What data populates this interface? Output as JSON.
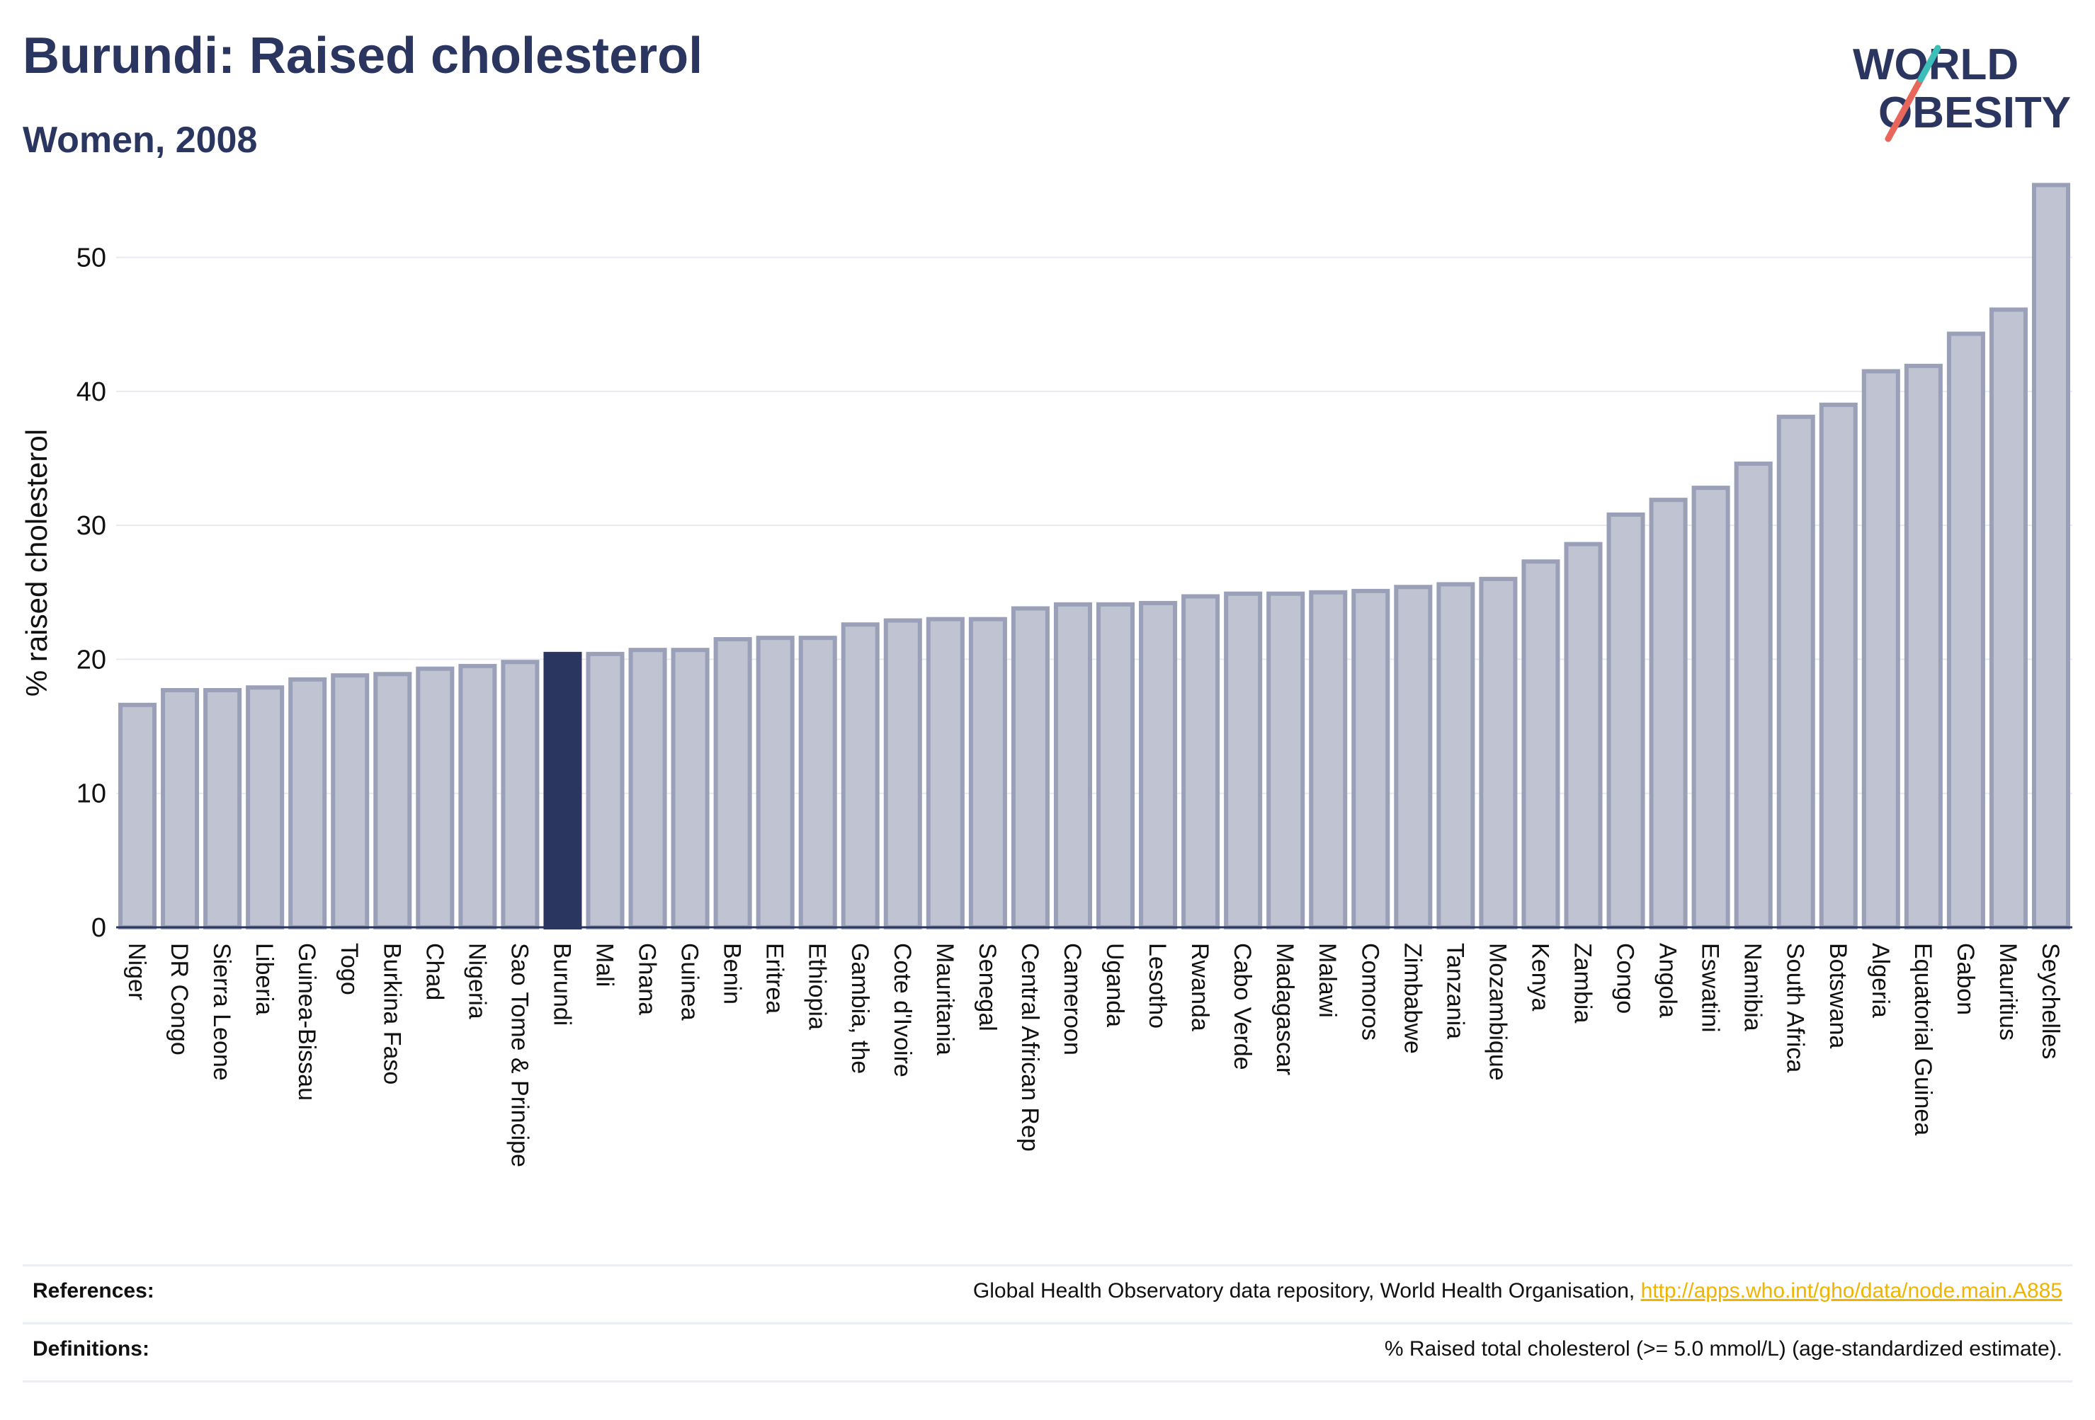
{
  "header": {
    "title": "Burundi: Raised cholesterol",
    "subtitle": "Women, 2008"
  },
  "logo": {
    "line1": "WORLD",
    "line2": "OBESITY"
  },
  "colors": {
    "title": "#2a3560",
    "bar_fill": "#bfc3d2",
    "bar_stroke": "#9aa0b8",
    "highlight": "#2a3560",
    "accent_red": "#e8675a",
    "accent_teal": "#3bbfb8",
    "link": "#f0b400"
  },
  "chart_data": {
    "type": "bar",
    "ylabel": "% raised cholesterol",
    "xlabel": "",
    "ylim": [
      0,
      56
    ],
    "yticks": [
      0,
      10,
      20,
      30,
      40,
      50
    ],
    "grid": true,
    "highlight": "Burundi",
    "categories": [
      "Niger",
      "DR Congo",
      "Sierra Leone",
      "Liberia",
      "Guinea-Bissau",
      "Togo",
      "Burkina Faso",
      "Chad",
      "Nigeria",
      "Sao Tome & Principe",
      "Burundi",
      "Mali",
      "Ghana",
      "Guinea",
      "Benin",
      "Eritrea",
      "Ethiopia",
      "Gambia, the",
      "Cote d'Ivoire",
      "Mauritania",
      "Senegal",
      "Central African Rep",
      "Cameroon",
      "Uganda",
      "Lesotho",
      "Rwanda",
      "Cabo Verde",
      "Madagascar",
      "Malawi",
      "Comoros",
      "Zimbabwe",
      "Tanzania",
      "Mozambique",
      "Kenya",
      "Zambia",
      "Congo",
      "Angola",
      "Eswatini",
      "Namibia",
      "South Africa",
      "Botswana",
      "Algeria",
      "Equatorial Guinea",
      "Gabon",
      "Mauritius",
      "Seychelles"
    ],
    "values": [
      16.6,
      17.7,
      17.7,
      17.9,
      18.5,
      18.8,
      18.9,
      19.3,
      19.5,
      19.8,
      20.4,
      20.4,
      20.7,
      20.7,
      21.5,
      21.6,
      21.6,
      22.6,
      22.9,
      23.0,
      23.0,
      23.8,
      24.1,
      24.1,
      24.2,
      24.7,
      24.9,
      24.9,
      25.0,
      25.1,
      25.4,
      25.6,
      26.0,
      27.3,
      28.6,
      30.8,
      31.9,
      32.8,
      34.6,
      38.1,
      39.0,
      41.5,
      41.9,
      44.3,
      46.1,
      55.4
    ]
  },
  "footer": {
    "references_label": "References:",
    "references_text": "Global Health Observatory data repository, World Health Organisation, ",
    "references_link": "http://apps.who.int/gho/data/node.main.A885",
    "definitions_label": "Definitions:",
    "definitions_text": "% Raised total cholesterol (>= 5.0 mmol/L) (age-standardized estimate)."
  }
}
